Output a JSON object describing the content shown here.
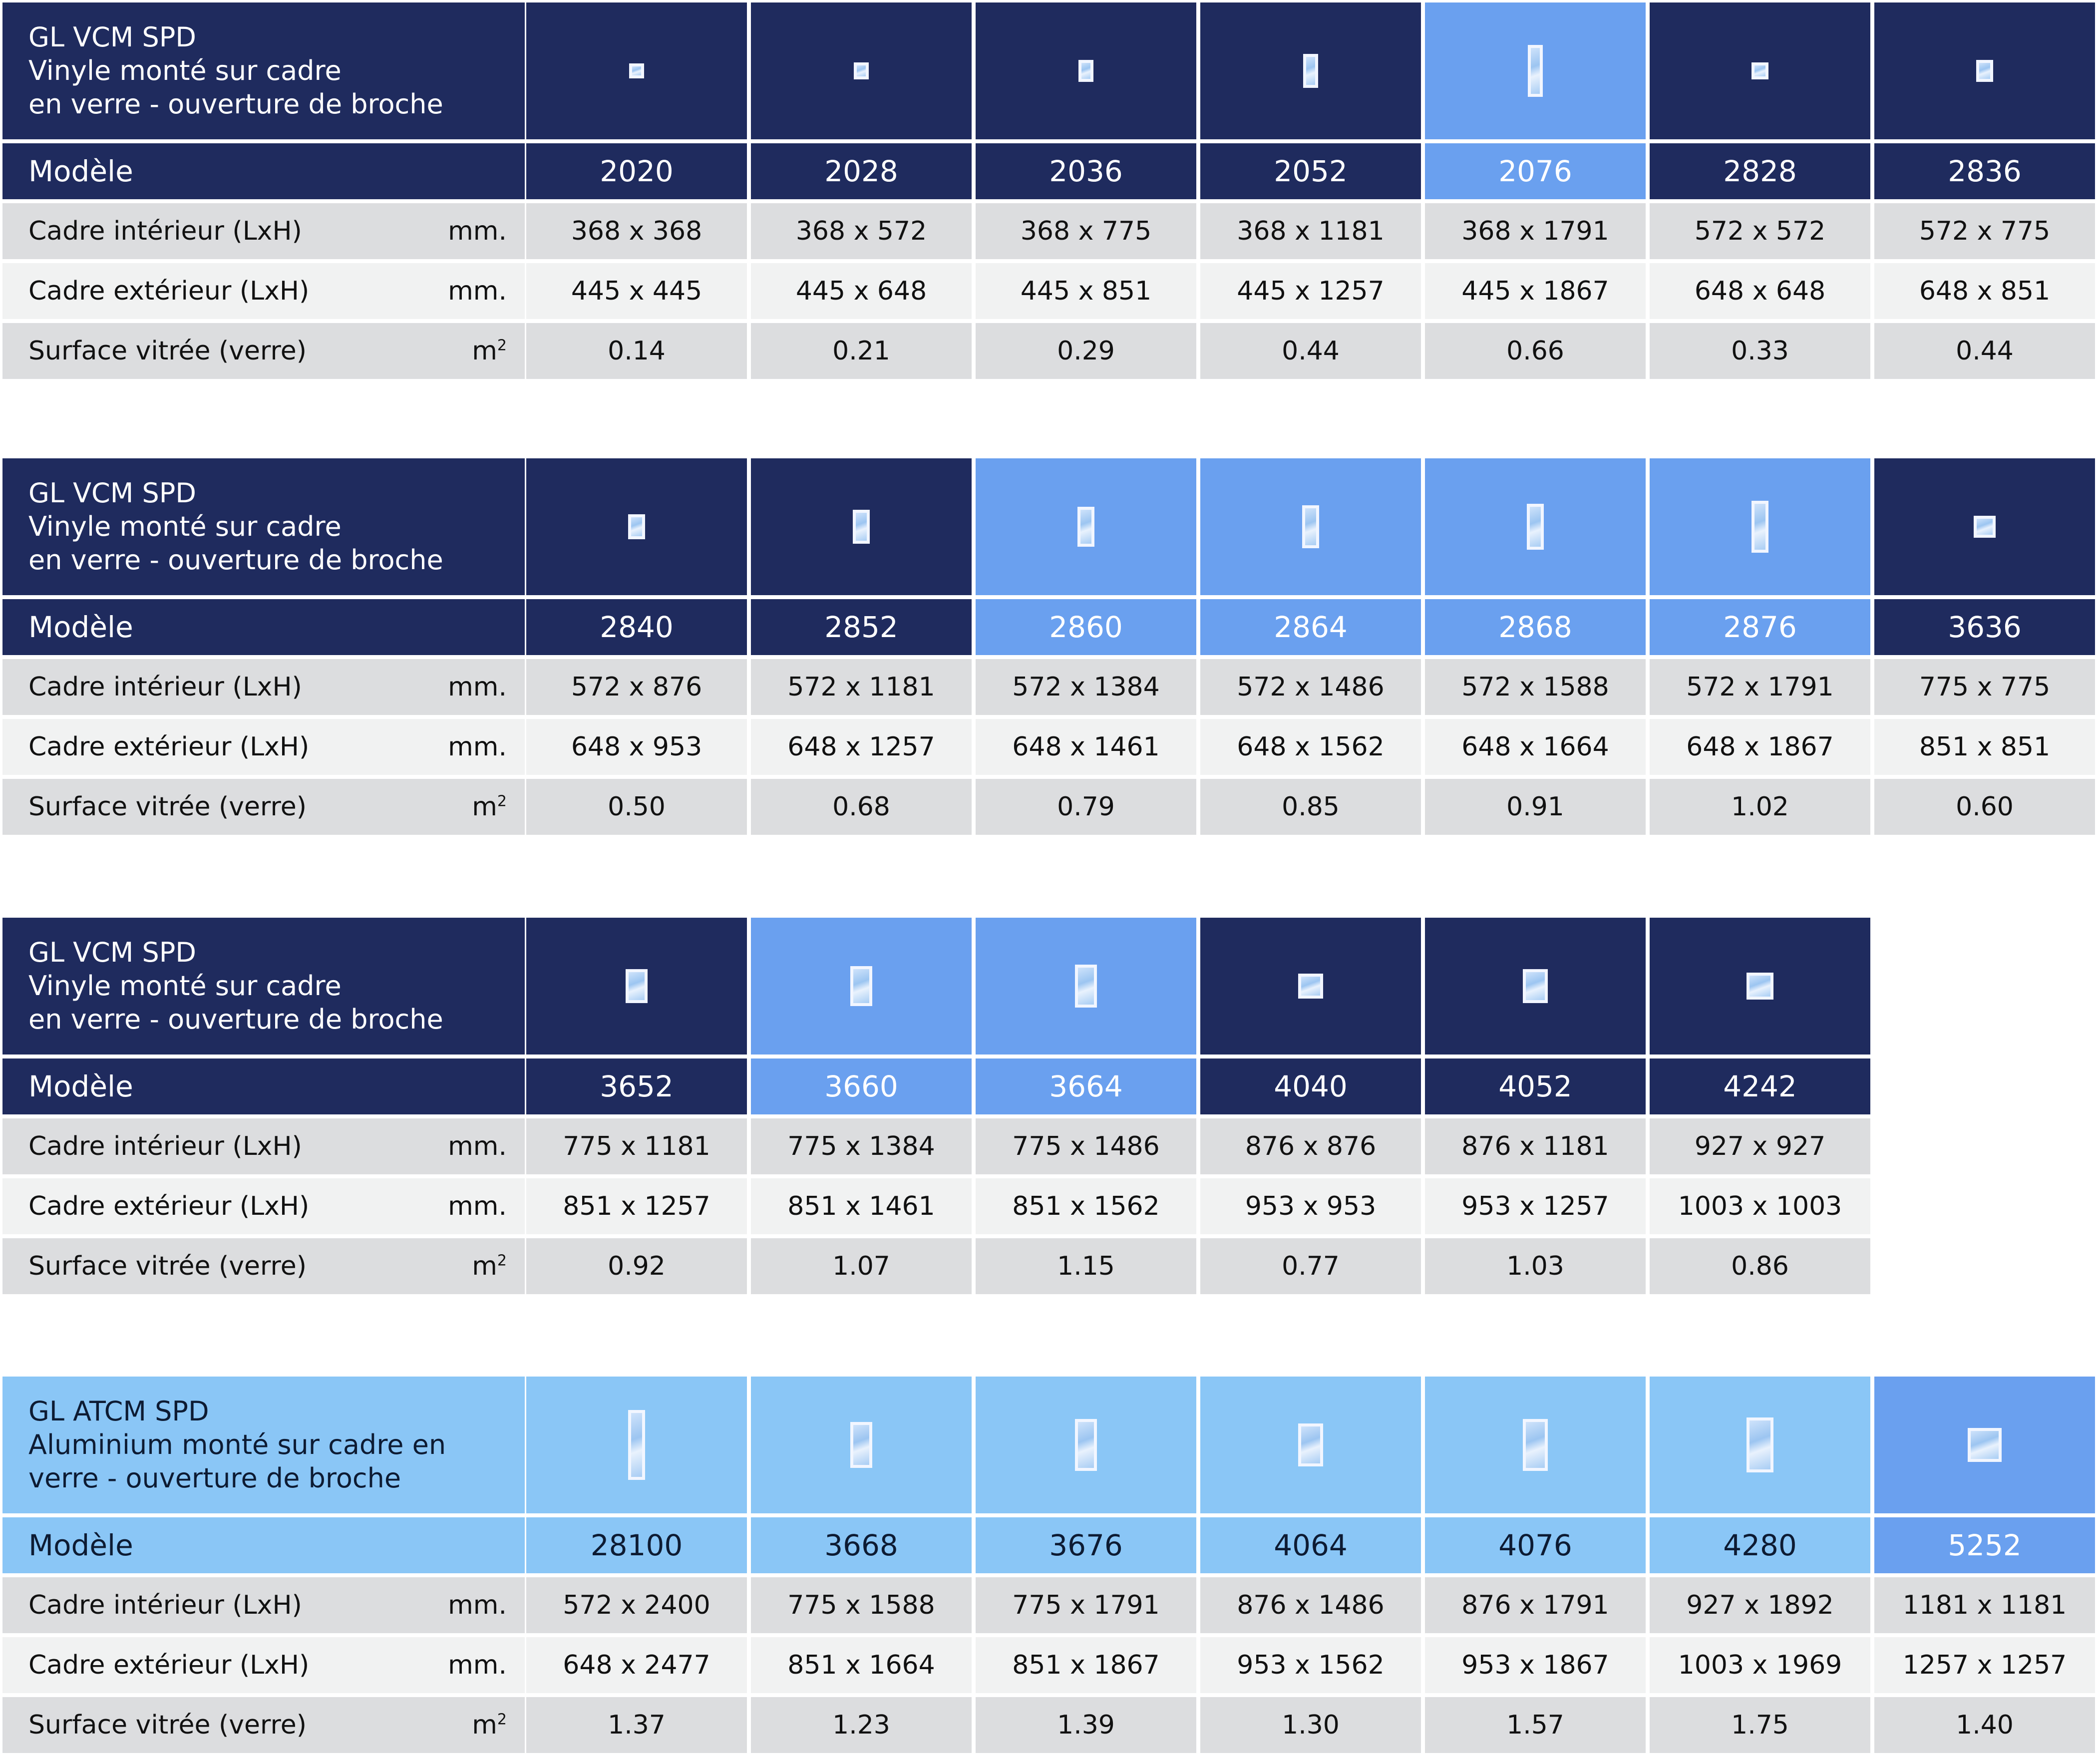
{
  "colors": {
    "dark": "#1f2b5e",
    "mid": "#6aa0ef",
    "light": "#8ac6f6",
    "row_gray": "#dcdddf",
    "row_white": "#f1f2f2"
  },
  "row_labels": {
    "model": "Modèle",
    "inner": "Cadre intérieur (LxH)",
    "outer": "Cadre extérieur (LxH)",
    "glass": "Surface vitrée (verre)",
    "unit_mm": "mm.",
    "unit_m": "m",
    "unit_sup": "2"
  },
  "tables": [
    {
      "header": [
        "GL VCM SPD",
        "Vinyle monté sur cadre",
        "en verre - ouverture de broche"
      ],
      "theme": "dark",
      "models": [
        {
          "model": "2020",
          "inner": "368 x 368",
          "outer": "445 x 445",
          "glass": "0.14",
          "color": "dark",
          "icon": "window-icon"
        },
        {
          "model": "2028",
          "inner": "368 x 572",
          "outer": "445 x 648",
          "glass": "0.21",
          "color": "dark",
          "icon": "window-icon"
        },
        {
          "model": "2036",
          "inner": "368 x 775",
          "outer": "445 x 851",
          "glass": "0.29",
          "color": "dark",
          "icon": "window-icon"
        },
        {
          "model": "2052",
          "inner": "368 x 1181",
          "outer": "445 x 1257",
          "glass": "0.44",
          "color": "dark",
          "icon": "window-icon"
        },
        {
          "model": "2076",
          "inner": "368 x 1791",
          "outer": "445 x 1867",
          "glass": "0.66",
          "color": "mid",
          "icon": "window-icon"
        },
        {
          "model": "2828",
          "inner": "572 x 572",
          "outer": "648 x 648",
          "glass": "0.33",
          "color": "dark",
          "icon": "window-icon"
        },
        {
          "model": "2836",
          "inner": "572 x 775",
          "outer": "648 x 851",
          "glass": "0.44",
          "color": "dark",
          "icon": "window-icon"
        }
      ]
    },
    {
      "header": [
        "GL VCM SPD",
        "Vinyle monté sur cadre",
        "en verre - ouverture de broche"
      ],
      "theme": "dark",
      "models": [
        {
          "model": "2840",
          "inner": "572 x 876",
          "outer": "648 x 953",
          "glass": "0.50",
          "color": "dark",
          "icon": "window-icon"
        },
        {
          "model": "2852",
          "inner": "572 x 1181",
          "outer": "648 x 1257",
          "glass": "0.68",
          "color": "dark",
          "icon": "window-icon"
        },
        {
          "model": "2860",
          "inner": "572 x 1384",
          "outer": "648 x 1461",
          "glass": "0.79",
          "color": "mid",
          "icon": "window-icon"
        },
        {
          "model": "2864",
          "inner": "572 x 1486",
          "outer": "648 x 1562",
          "glass": "0.85",
          "color": "mid",
          "icon": "window-icon"
        },
        {
          "model": "2868",
          "inner": "572 x 1588",
          "outer": "648 x 1664",
          "glass": "0.91",
          "color": "mid",
          "icon": "window-icon"
        },
        {
          "model": "2876",
          "inner": "572 x 1791",
          "outer": "648 x 1867",
          "glass": "1.02",
          "color": "mid",
          "icon": "window-icon"
        },
        {
          "model": "3636",
          "inner": "775 x 775",
          "outer": "851 x 851",
          "glass": "0.60",
          "color": "dark",
          "icon": "window-icon"
        }
      ]
    },
    {
      "header": [
        "GL VCM SPD",
        "Vinyle monté sur cadre",
        "en verre - ouverture de broche"
      ],
      "theme": "dark",
      "models": [
        {
          "model": "3652",
          "inner": "775 x 1181",
          "outer": "851 x 1257",
          "glass": "0.92",
          "color": "dark",
          "icon": "window-icon"
        },
        {
          "model": "3660",
          "inner": "775 x 1384",
          "outer": "851 x 1461",
          "glass": "1.07",
          "color": "mid",
          "icon": "window-icon"
        },
        {
          "model": "3664",
          "inner": "775 x 1486",
          "outer": "851 x 1562",
          "glass": "1.15",
          "color": "mid",
          "icon": "window-icon"
        },
        {
          "model": "4040",
          "inner": "876 x 876",
          "outer": "953 x 953",
          "glass": "0.77",
          "color": "dark",
          "icon": "window-icon"
        },
        {
          "model": "4052",
          "inner": "876 x 1181",
          "outer": "953 x 1257",
          "glass": "1.03",
          "color": "dark",
          "icon": "window-icon"
        },
        {
          "model": "4242",
          "inner": "927 x 927",
          "outer": "1003 x 1003",
          "glass": "0.86",
          "color": "dark",
          "icon": "window-icon"
        }
      ]
    },
    {
      "header": [
        "GL ATCM SPD",
        "Aluminium monté sur cadre en",
        "verre - ouverture de broche"
      ],
      "theme": "light",
      "models": [
        {
          "model": "28100",
          "inner": "572 x 2400",
          "outer": "648 x 2477",
          "glass": "1.37",
          "color": "light",
          "icon": "window-icon"
        },
        {
          "model": "3668",
          "inner": "775 x 1588",
          "outer": "851 x 1664",
          "glass": "1.23",
          "color": "light",
          "icon": "window-icon"
        },
        {
          "model": "3676",
          "inner": "775 x 1791",
          "outer": "851 x 1867",
          "glass": "1.39",
          "color": "light",
          "icon": "window-icon"
        },
        {
          "model": "4064",
          "inner": "876 x 1486",
          "outer": "953 x 1562",
          "glass": "1.30",
          "color": "light",
          "icon": "window-icon"
        },
        {
          "model": "4076",
          "inner": "876 x 1791",
          "outer": "953 x 1867",
          "glass": "1.57",
          "color": "light",
          "icon": "window-icon"
        },
        {
          "model": "4280",
          "inner": "927 x 1892",
          "outer": "1003 x 1969",
          "glass": "1.75",
          "color": "light",
          "icon": "window-icon"
        },
        {
          "model": "5252",
          "inner": "1181 x 1181",
          "outer": "1257 x 1257",
          "glass": "1.40",
          "color": "mid",
          "icon": "window-icon"
        }
      ]
    }
  ]
}
